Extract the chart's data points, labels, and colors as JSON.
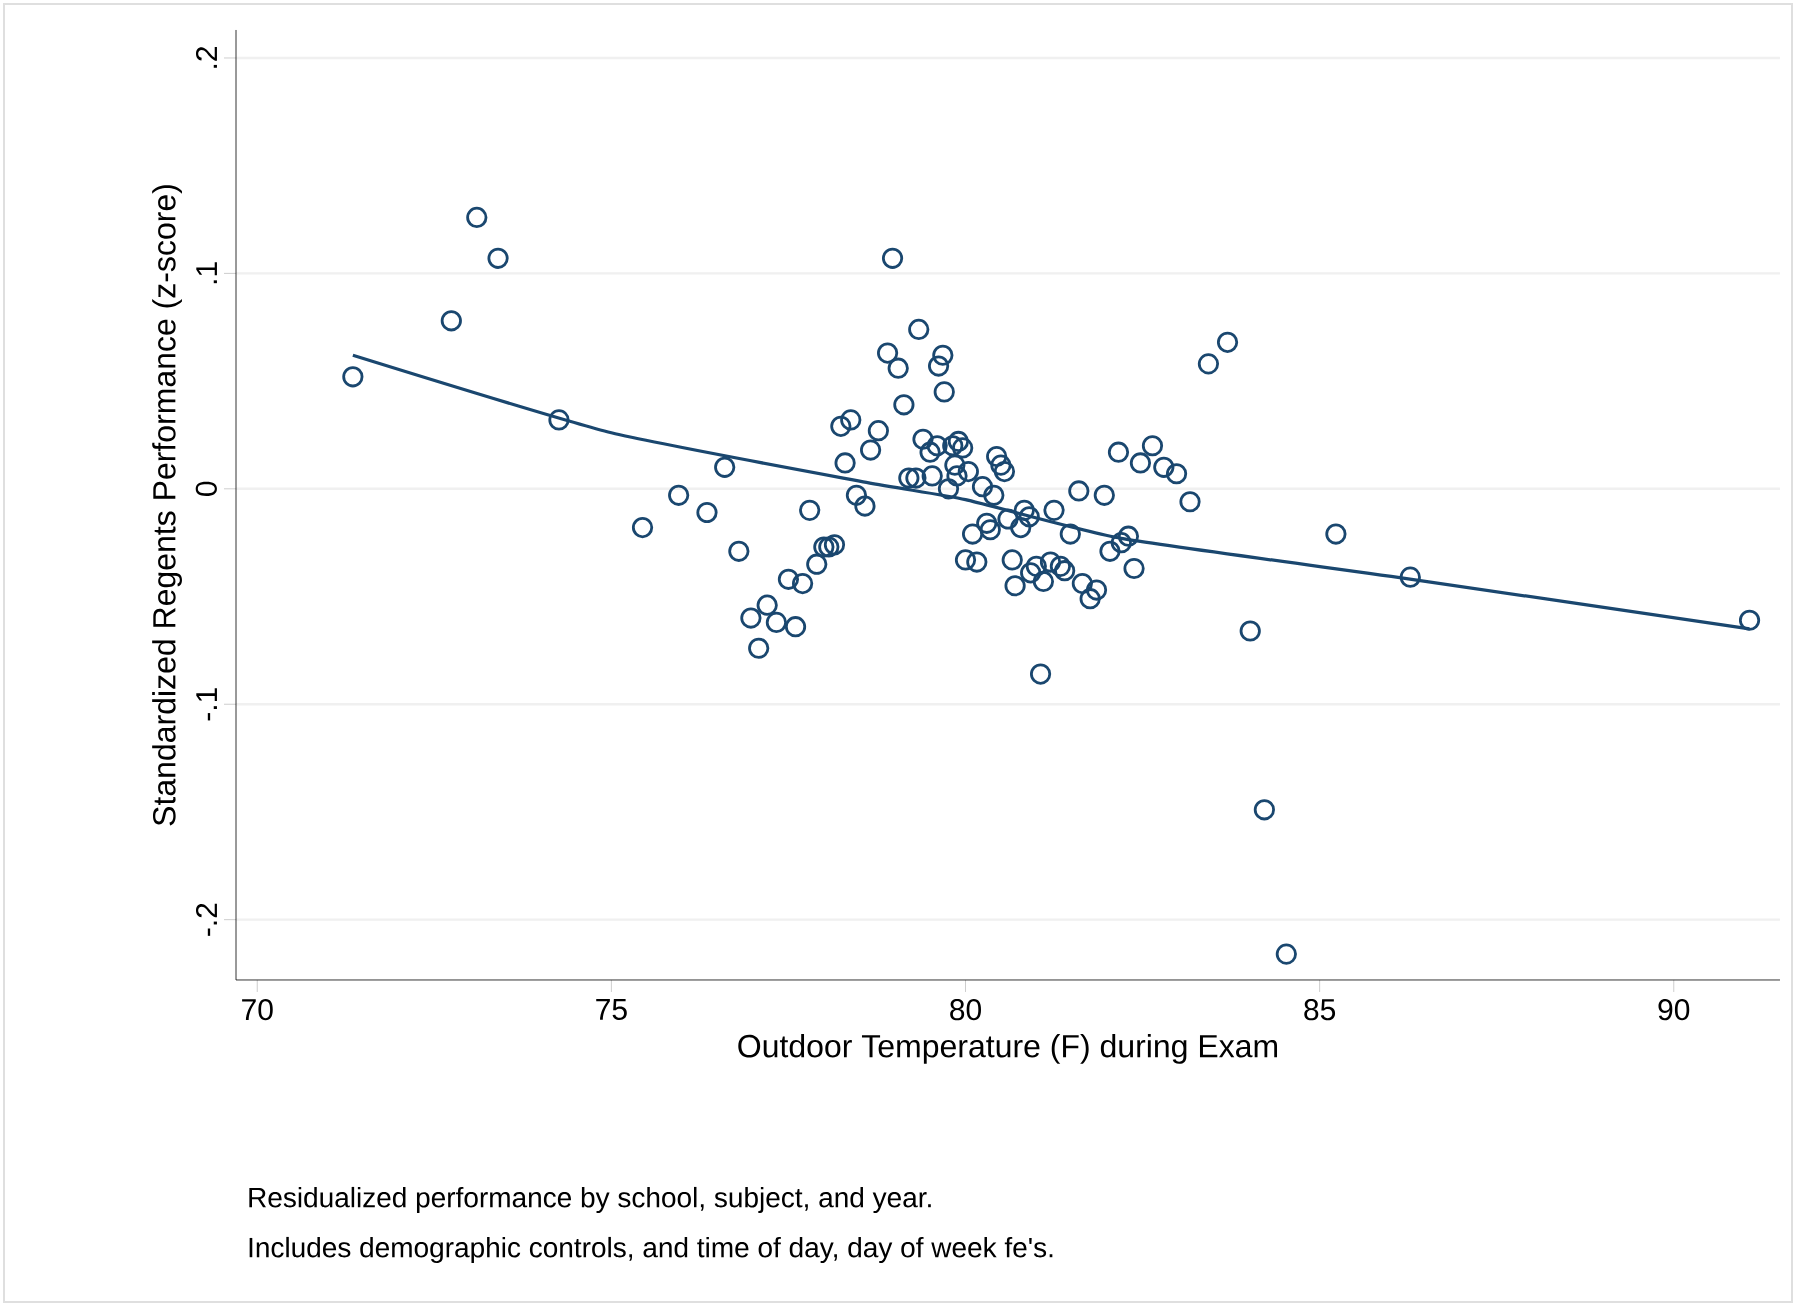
{
  "chart_data": {
    "type": "scatter",
    "xlabel": "Outdoor Temperature (F) during Exam",
    "ylabel": "Standardized Regents Performance (z-score)",
    "xlim": [
      69.7,
      91.5
    ],
    "ylim": [
      -0.228,
      0.213
    ],
    "xticks": [
      70,
      75,
      80,
      85,
      90
    ],
    "yticks": [
      {
        "value": -0.2,
        "label": "-.2"
      },
      {
        "value": -0.1,
        "label": "-.1"
      },
      {
        "value": 0,
        "label": "0"
      },
      {
        "value": 0.1,
        "label": ".1"
      },
      {
        "value": 0.2,
        "label": ".2"
      }
    ],
    "grid": "y",
    "series": [
      {
        "marker": "circle",
        "color": "#1a476f",
        "x": [
          71.35,
          72.74,
          73.1,
          73.4,
          74.26,
          75.44,
          75.95,
          76.35,
          76.6,
          76.8,
          76.97,
          77.08,
          77.2,
          77.33,
          77.5,
          77.6,
          77.7,
          77.8,
          77.9,
          78.0,
          78.07,
          78.15,
          78.24,
          78.38,
          78.3,
          78.46,
          78.58,
          78.66,
          78.77,
          78.9,
          78.97,
          79.05,
          79.13,
          79.2,
          79.3,
          79.34,
          79.4,
          79.5,
          79.53,
          79.6,
          79.62,
          79.68,
          79.7,
          79.76,
          79.82,
          79.85,
          79.88,
          79.9,
          79.96,
          80.0,
          80.04,
          80.1,
          80.16,
          80.24,
          80.3,
          80.35,
          80.4,
          80.44,
          80.5,
          80.55,
          80.6,
          80.66,
          80.7,
          80.78,
          80.83,
          80.9,
          80.92,
          81.0,
          81.06,
          81.1,
          81.2,
          81.25,
          81.34,
          81.4,
          81.48,
          81.6,
          81.65,
          81.76,
          81.85,
          81.96,
          82.04,
          82.16,
          82.2,
          82.3,
          82.38,
          82.47,
          82.64,
          82.8,
          82.98,
          83.17,
          83.43,
          83.7,
          84.02,
          84.22,
          84.53,
          85.23,
          86.28,
          91.07
        ],
        "values": [
          0.052,
          0.078,
          0.126,
          0.107,
          0.032,
          -0.018,
          -0.003,
          -0.011,
          0.01,
          -0.029,
          -0.06,
          -0.074,
          -0.054,
          -0.062,
          -0.042,
          -0.064,
          -0.044,
          -0.01,
          -0.035,
          -0.027,
          -0.027,
          -0.026,
          0.029,
          0.032,
          0.012,
          -0.003,
          -0.008,
          0.018,
          0.027,
          0.063,
          0.107,
          0.056,
          0.039,
          0.005,
          0.005,
          0.074,
          0.023,
          0.017,
          0.006,
          0.02,
          0.057,
          0.062,
          0.045,
          0.0,
          0.02,
          0.011,
          0.006,
          0.022,
          0.019,
          -0.033,
          0.008,
          -0.021,
          -0.034,
          0.001,
          -0.016,
          -0.019,
          -0.003,
          0.015,
          0.011,
          0.008,
          -0.014,
          -0.033,
          -0.045,
          -0.018,
          -0.01,
          -0.013,
          -0.039,
          -0.036,
          -0.086,
          -0.043,
          -0.034,
          -0.01,
          -0.036,
          -0.038,
          -0.021,
          -0.001,
          -0.044,
          -0.051,
          -0.047,
          -0.003,
          -0.029,
          0.017,
          -0.025,
          -0.022,
          -0.037,
          0.012,
          0.02,
          0.01,
          0.007,
          -0.006,
          0.058,
          0.068,
          -0.066,
          -0.149,
          -0.216,
          -0.021,
          -0.041,
          -0.061
        ]
      },
      {
        "type": "line",
        "marker": "none",
        "color": "#1a476f",
        "x": [
          71.35,
          75,
          78.6,
          80,
          82.2,
          86.3,
          91.07
        ],
        "values": [
          0.062,
          0.026,
          0.003,
          -0.005,
          -0.023,
          -0.042,
          -0.065
        ]
      }
    ],
    "annotations": [
      "Residualized performance by school, subject, and year.",
      "Includes demographic controls, and time of day, day of week fe's."
    ]
  }
}
